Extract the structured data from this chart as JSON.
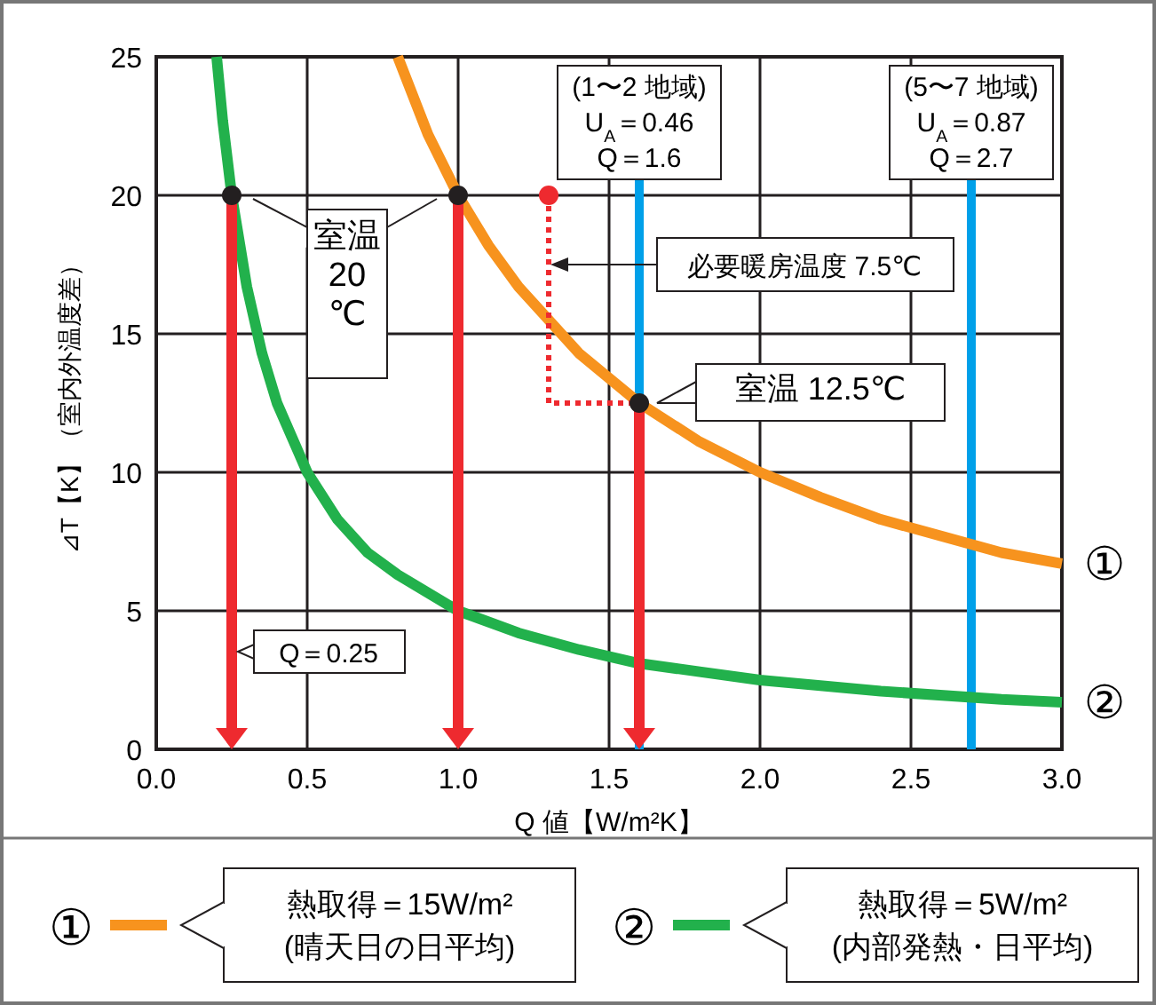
{
  "chart_data": {
    "type": "line",
    "xlabel": "Q 値【W/m²K】",
    "ylabel": "⊿T【K】（室内外温度差）",
    "xlim": [
      0,
      3
    ],
    "ylim": [
      0,
      25
    ],
    "xticks": [
      {
        "value": 0,
        "label": "0.0"
      },
      0.5,
      {
        "value": 1,
        "label": "1.0"
      },
      1.5,
      {
        "value": 2,
        "label": "2.0"
      },
      2.5,
      {
        "value": 3,
        "label": "3.0"
      }
    ],
    "yticks": [
      0,
      5,
      10,
      15,
      20,
      25
    ],
    "grid": true,
    "legend": "bottom",
    "series": [
      {
        "name": "①",
        "color": "#f7931e",
        "x": [
          0.8,
          0.9,
          1.0,
          1.1,
          1.2,
          1.4,
          1.6,
          1.8,
          2.0,
          2.2,
          2.4,
          2.6,
          2.8,
          3.0
        ],
        "values": [
          25,
          22.2,
          20,
          18.2,
          16.7,
          14.3,
          12.5,
          11.1,
          10,
          9.1,
          8.3,
          7.7,
          7.1,
          6.7
        ]
      },
      {
        "name": "②",
        "color": "#22b14c",
        "x": [
          0.2,
          0.22,
          0.25,
          0.3,
          0.35,
          0.4,
          0.5,
          0.6,
          0.7,
          0.8,
          1.0,
          1.2,
          1.4,
          1.6,
          1.8,
          2.0,
          2.4,
          2.8,
          3.0
        ],
        "values": [
          25,
          22.7,
          20,
          16.7,
          14.3,
          12.5,
          10,
          8.3,
          7.1,
          6.3,
          5,
          4.2,
          3.6,
          3.1,
          2.8,
          2.5,
          2.1,
          1.8,
          1.7
        ]
      },
      {
        "color": "#ee2a2f",
        "line_style": "dotted",
        "x": [
          1.3,
          1.3,
          1.6
        ],
        "values": [
          20,
          12.5,
          12.5
        ]
      },
      {
        "type": "scatter",
        "color": "#ee2a2f",
        "marker": "circle",
        "x": [
          1.3
        ],
        "values": [
          20
        ]
      },
      {
        "type": "scatter",
        "color": "#231f20",
        "marker": "circle",
        "x": [
          0.25,
          1.0,
          1.6
        ],
        "values": [
          20,
          20,
          12.5
        ]
      }
    ],
    "ref_lines": [
      {
        "axis": "x",
        "value": 1.6,
        "label": "(1〜2 地域)\nU$_{A}$＝0.46\nQ＝1.6",
        "color": "#00a0e9"
      },
      {
        "axis": "x",
        "value": 2.7,
        "label": "(5〜7 地域)\nU$_{A}$＝0.87\nQ＝2.7",
        "color": "#00a0e9"
      }
    ],
    "annotations": [
      "熱取得＝15W/m²\n(晴天日の日平均)",
      "熱取得＝5W/m²\n(内部発熱・日平均)",
      {
        "text": "室温\n20\n℃",
        "x": 0.25,
        "y": 20
      },
      {
        "text": "室温 12.5℃",
        "x": 1.6,
        "y": 12.5
      },
      "Q＝0.25",
      "必要暖房温度 7.5℃"
    ]
  }
}
